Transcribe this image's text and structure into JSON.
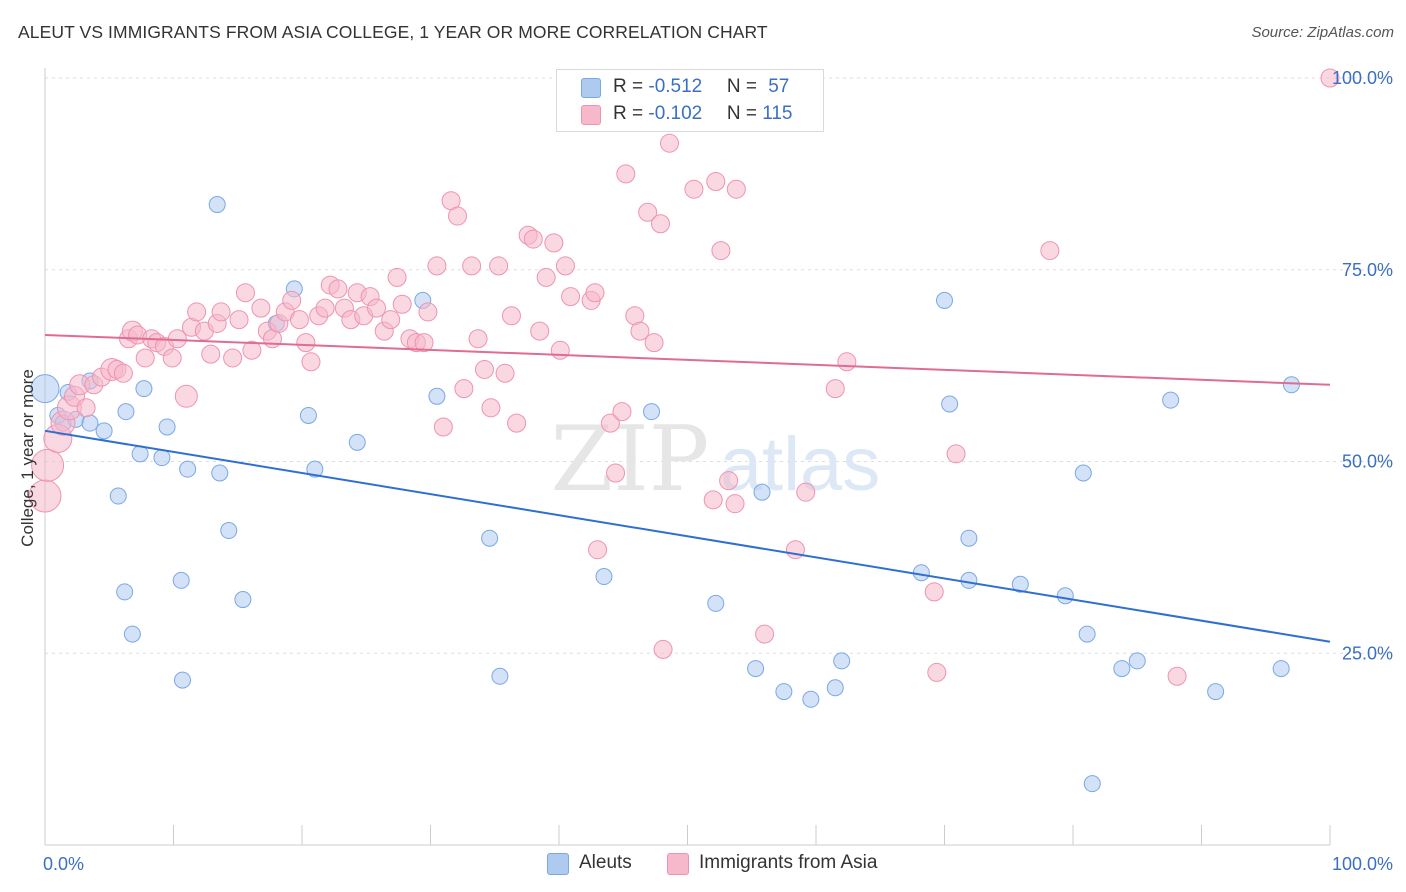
{
  "title": "ALEUT VS IMMIGRANTS FROM ASIA COLLEGE, 1 YEAR OR MORE CORRELATION CHART",
  "source": "Source: ZipAtlas.com",
  "watermark": {
    "zip": "ZIP",
    "atlas": "atlas"
  },
  "legend": {
    "rows": [
      {
        "r_label": "R = ",
        "r_value": "-0.512",
        "n_label": "N = ",
        "n_value": "57",
        "color": "#aecbef"
      },
      {
        "r_label": "R = ",
        "r_value": "-0.102",
        "n_label": "N = ",
        "n_value": "115",
        "color": "#f6b8cb"
      }
    ]
  },
  "bottom_legend": [
    {
      "label": "Aleuts",
      "color": "#aecbef"
    },
    {
      "label": "Immigrants from Asia",
      "color": "#f6b8cb"
    }
  ],
  "chart_data": {
    "type": "scatter",
    "xlabel": "",
    "ylabel": "College, 1 year or more",
    "xlim": [
      0,
      100
    ],
    "ylim": [
      0,
      100
    ],
    "x_tick_labels": [
      "0.0%",
      "100.0%"
    ],
    "y_tick_labels": [
      {
        "value": 25,
        "label": "25.0%"
      },
      {
        "value": 50,
        "label": "50.0%"
      },
      {
        "value": 75,
        "label": "75.0%"
      },
      {
        "value": 100,
        "label": "100.0%"
      }
    ],
    "grid": "horizontal dashed",
    "legend_position": "top-center",
    "series": [
      {
        "name": "Aleuts",
        "color": "#7aa8e6",
        "fill": "#aecbef",
        "line_color": "#2e6fd1",
        "trend": {
          "x": [
            0,
            100
          ],
          "y": [
            54.0,
            26.5
          ]
        },
        "points": [
          [
            0.0,
            59.5,
            14
          ],
          [
            1.0,
            56.0,
            8
          ],
          [
            1.8,
            59.0,
            8
          ],
          [
            1.4,
            55.0,
            8
          ],
          [
            2.4,
            55.5,
            8
          ],
          [
            3.5,
            60.5,
            8
          ],
          [
            3.5,
            55.0,
            8
          ],
          [
            4.6,
            54.0,
            8
          ],
          [
            5.7,
            45.5,
            8
          ],
          [
            6.2,
            33.0,
            8
          ],
          [
            6.3,
            56.5,
            8
          ],
          [
            6.8,
            27.5,
            8
          ],
          [
            7.7,
            59.5,
            8
          ],
          [
            7.4,
            51.0,
            8
          ],
          [
            9.1,
            50.5,
            8
          ],
          [
            9.5,
            54.5,
            8
          ],
          [
            10.6,
            34.5,
            8
          ],
          [
            10.7,
            21.5,
            8
          ],
          [
            11.1,
            49.0,
            8
          ],
          [
            13.4,
            83.5,
            8
          ],
          [
            13.6,
            48.5,
            8
          ],
          [
            14.3,
            41.0,
            8
          ],
          [
            15.4,
            32.0,
            8
          ],
          [
            18.0,
            68.0,
            8
          ],
          [
            19.4,
            72.5,
            8
          ],
          [
            20.5,
            56.0,
            8
          ],
          [
            21.0,
            49.0,
            8
          ],
          [
            24.3,
            52.5,
            8
          ],
          [
            29.4,
            71.0,
            8
          ],
          [
            30.5,
            58.5,
            8
          ],
          [
            34.6,
            40.0,
            8
          ],
          [
            35.4,
            22.0,
            8
          ],
          [
            43.5,
            35.0,
            8
          ],
          [
            47.2,
            56.5,
            8
          ],
          [
            52.2,
            31.5,
            8
          ],
          [
            55.3,
            23.0,
            8
          ],
          [
            55.8,
            46.0,
            8
          ],
          [
            57.5,
            20.0,
            8
          ],
          [
            59.6,
            19.0,
            8
          ],
          [
            61.5,
            20.5,
            8
          ],
          [
            62.0,
            24.0,
            8
          ],
          [
            68.2,
            35.5,
            8
          ],
          [
            70.0,
            71.0,
            8
          ],
          [
            70.4,
            57.5,
            8
          ],
          [
            71.9,
            40.0,
            8
          ],
          [
            71.9,
            34.5,
            8
          ],
          [
            75.9,
            34.0,
            8
          ],
          [
            79.4,
            32.5,
            8
          ],
          [
            80.8,
            48.5,
            8
          ],
          [
            81.1,
            27.5,
            8
          ],
          [
            81.5,
            8.0,
            8
          ],
          [
            83.8,
            23.0,
            8
          ],
          [
            85.0,
            24.0,
            8
          ],
          [
            87.6,
            58.0,
            8
          ],
          [
            91.1,
            20.0,
            8
          ],
          [
            96.2,
            23.0,
            8
          ],
          [
            97.0,
            60.0,
            8
          ]
        ]
      },
      {
        "name": "Immigrants from Asia",
        "color": "#ef93b1",
        "fill": "#f6b8cb",
        "line_color": "#e06c94",
        "trend": {
          "x": [
            0,
            100
          ],
          "y": [
            66.5,
            60.0
          ]
        },
        "points": [
          [
            0.0,
            45.5,
            16
          ],
          [
            0.2,
            49.5,
            16
          ],
          [
            1.0,
            53.0,
            14
          ],
          [
            1.4,
            55.0,
            12
          ],
          [
            1.9,
            57.0,
            12
          ],
          [
            2.3,
            58.5,
            10
          ],
          [
            2.7,
            60.0,
            10
          ],
          [
            3.2,
            57.0,
            9
          ],
          [
            3.8,
            60.0,
            9
          ],
          [
            4.4,
            61.0,
            9
          ],
          [
            5.2,
            62.0,
            11
          ],
          [
            5.6,
            62.0,
            9
          ],
          [
            6.1,
            61.5,
            9
          ],
          [
            6.5,
            66.0,
            9
          ],
          [
            6.8,
            67.0,
            10
          ],
          [
            7.2,
            66.5,
            9
          ],
          [
            7.8,
            63.5,
            9
          ],
          [
            8.3,
            66.0,
            9
          ],
          [
            8.7,
            65.5,
            9
          ],
          [
            9.3,
            65.0,
            9
          ],
          [
            9.9,
            63.5,
            9
          ],
          [
            10.3,
            66.0,
            9
          ],
          [
            11.0,
            58.5,
            11
          ],
          [
            11.4,
            67.5,
            9
          ],
          [
            11.8,
            69.5,
            9
          ],
          [
            12.4,
            67.0,
            9
          ],
          [
            12.9,
            64.0,
            9
          ],
          [
            13.4,
            68.0,
            9
          ],
          [
            13.7,
            69.5,
            9
          ],
          [
            14.6,
            63.5,
            9
          ],
          [
            15.1,
            68.5,
            9
          ],
          [
            15.6,
            72.0,
            9
          ],
          [
            16.1,
            64.5,
            9
          ],
          [
            16.8,
            70.0,
            9
          ],
          [
            17.3,
            67.0,
            9
          ],
          [
            17.7,
            66.0,
            9
          ],
          [
            18.2,
            68.0,
            9
          ],
          [
            18.7,
            69.5,
            9
          ],
          [
            19.2,
            71.0,
            9
          ],
          [
            19.8,
            68.5,
            9
          ],
          [
            20.3,
            65.5,
            9
          ],
          [
            20.7,
            63.0,
            9
          ],
          [
            21.3,
            69.0,
            9
          ],
          [
            21.8,
            70.0,
            9
          ],
          [
            22.2,
            73.0,
            9
          ],
          [
            22.8,
            72.5,
            9
          ],
          [
            23.3,
            70.0,
            9
          ],
          [
            23.8,
            68.5,
            9
          ],
          [
            24.3,
            72.0,
            9
          ],
          [
            24.8,
            69.0,
            9
          ],
          [
            25.3,
            71.5,
            9
          ],
          [
            25.8,
            70.0,
            9
          ],
          [
            26.4,
            67.0,
            9
          ],
          [
            26.9,
            68.5,
            9
          ],
          [
            27.4,
            74.0,
            9
          ],
          [
            27.8,
            70.5,
            9
          ],
          [
            28.4,
            66.0,
            9
          ],
          [
            28.9,
            65.5,
            9
          ],
          [
            29.5,
            65.5,
            9
          ],
          [
            29.8,
            69.5,
            9
          ],
          [
            30.5,
            75.5,
            9
          ],
          [
            31.0,
            54.5,
            9
          ],
          [
            31.6,
            84.0,
            9
          ],
          [
            32.1,
            82.0,
            9
          ],
          [
            32.6,
            59.5,
            9
          ],
          [
            33.2,
            75.5,
            9
          ],
          [
            33.7,
            66.0,
            9
          ],
          [
            34.2,
            62.0,
            9
          ],
          [
            34.7,
            57.0,
            9
          ],
          [
            35.3,
            75.5,
            9
          ],
          [
            35.8,
            61.5,
            9
          ],
          [
            36.3,
            69.0,
            9
          ],
          [
            36.7,
            55.0,
            9
          ],
          [
            37.6,
            79.5,
            9
          ],
          [
            38.0,
            79.0,
            9
          ],
          [
            38.5,
            67.0,
            9
          ],
          [
            39.0,
            74.0,
            9
          ],
          [
            39.6,
            78.5,
            9
          ],
          [
            40.1,
            64.5,
            9
          ],
          [
            40.5,
            75.5,
            9
          ],
          [
            40.9,
            71.5,
            9
          ],
          [
            42.5,
            71.0,
            9
          ],
          [
            42.8,
            72.0,
            9
          ],
          [
            43.0,
            38.5,
            9
          ],
          [
            44.0,
            55.0,
            9
          ],
          [
            44.4,
            48.5,
            9
          ],
          [
            44.9,
            56.5,
            9
          ],
          [
            45.2,
            87.5,
            9
          ],
          [
            45.9,
            69.0,
            9
          ],
          [
            46.3,
            67.0,
            9
          ],
          [
            46.9,
            82.5,
            9
          ],
          [
            47.4,
            65.5,
            9
          ],
          [
            47.9,
            81.0,
            9
          ],
          [
            48.1,
            25.5,
            9
          ],
          [
            48.6,
            91.5,
            9
          ],
          [
            50.5,
            85.5,
            9
          ],
          [
            52.0,
            45.0,
            9
          ],
          [
            52.2,
            86.5,
            9
          ],
          [
            52.6,
            77.5,
            9
          ],
          [
            53.2,
            47.5,
            9
          ],
          [
            53.8,
            85.5,
            9
          ],
          [
            53.7,
            44.5,
            9
          ],
          [
            56.0,
            27.5,
            9
          ],
          [
            58.4,
            38.5,
            9
          ],
          [
            59.2,
            46.0,
            9
          ],
          [
            61.5,
            59.5,
            9
          ],
          [
            62.4,
            63.0,
            9
          ],
          [
            69.2,
            33.0,
            9
          ],
          [
            69.4,
            22.5,
            9
          ],
          [
            70.9,
            51.0,
            9
          ],
          [
            78.2,
            77.5,
            9
          ],
          [
            88.1,
            22.0,
            9
          ],
          [
            100.0,
            100.0,
            9
          ]
        ]
      }
    ]
  }
}
